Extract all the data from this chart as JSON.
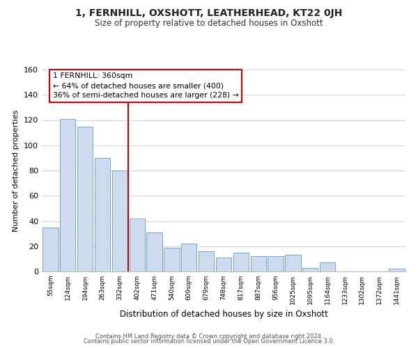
{
  "title": "1, FERNHILL, OXSHOTT, LEATHERHEAD, KT22 0JH",
  "subtitle": "Size of property relative to detached houses in Oxshott",
  "xlabel": "Distribution of detached houses by size in Oxshott",
  "ylabel": "Number of detached properties",
  "bar_labels": [
    "55sqm",
    "124sqm",
    "194sqm",
    "263sqm",
    "332sqm",
    "402sqm",
    "471sqm",
    "540sqm",
    "609sqm",
    "679sqm",
    "748sqm",
    "817sqm",
    "887sqm",
    "956sqm",
    "1025sqm",
    "1095sqm",
    "1164sqm",
    "1233sqm",
    "1302sqm",
    "1372sqm",
    "1441sqm"
  ],
  "bar_values": [
    35,
    121,
    115,
    90,
    80,
    42,
    31,
    19,
    22,
    16,
    11,
    15,
    12,
    12,
    13,
    3,
    7,
    0,
    0,
    0,
    2
  ],
  "bar_color": "#ccdcee",
  "bar_edge_color": "#6699cc",
  "vline_x": 4.5,
  "vline_color": "#cc0000",
  "annotation_title": "1 FERNHILL: 360sqm",
  "annotation_line1": "← 64% of detached houses are smaller (400)",
  "annotation_line2": "36% of semi-detached houses are larger (228) →",
  "annotation_box_color": "#ffffff",
  "annotation_box_edge": "#cc0000",
  "ylim": [
    0,
    160
  ],
  "yticks": [
    0,
    20,
    40,
    60,
    80,
    100,
    120,
    140,
    160
  ],
  "footer1": "Contains HM Land Registry data © Crown copyright and database right 2024.",
  "footer2": "Contains public sector information licensed under the Open Government Licence 3.0.",
  "background_color": "#ffffff",
  "grid_color": "#d0d8e4"
}
